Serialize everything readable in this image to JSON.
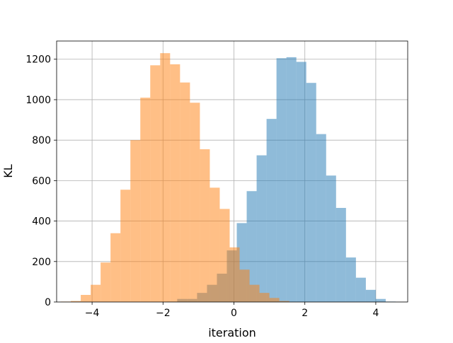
{
  "chart_data": {
    "type": "histogram",
    "xlabel": "iteration",
    "ylabel": "KL",
    "xlim": [
      -5.0,
      4.9
    ],
    "ylim": [
      0,
      1290
    ],
    "x_ticks": [
      -4,
      -2,
      0,
      2,
      4
    ],
    "y_ticks": [
      0,
      200,
      400,
      600,
      800,
      1000,
      1200
    ],
    "grid": true,
    "series": [
      {
        "color": "#1f77b4",
        "opacity": 0.5,
        "bins": [
          [
            -1.88,
            -1.6,
            2
          ],
          [
            -1.6,
            -1.32,
            15
          ],
          [
            -1.32,
            -1.04,
            15
          ],
          [
            -1.04,
            -0.76,
            45
          ],
          [
            -0.76,
            -0.48,
            85
          ],
          [
            -0.48,
            -0.2,
            140
          ],
          [
            -0.2,
            0.08,
            255
          ],
          [
            0.08,
            0.36,
            390
          ],
          [
            0.36,
            0.64,
            548
          ],
          [
            0.64,
            0.92,
            725
          ],
          [
            0.92,
            1.2,
            905
          ],
          [
            1.2,
            1.48,
            1205
          ],
          [
            1.48,
            1.76,
            1210
          ],
          [
            1.76,
            2.04,
            1187
          ],
          [
            2.04,
            2.32,
            1083
          ],
          [
            2.32,
            2.6,
            830
          ],
          [
            2.6,
            2.88,
            625
          ],
          [
            2.88,
            3.16,
            465
          ],
          [
            3.16,
            3.44,
            220
          ],
          [
            3.44,
            3.72,
            120
          ],
          [
            3.72,
            4.0,
            60
          ],
          [
            4.0,
            4.28,
            15
          ],
          [
            4.28,
            4.56,
            2
          ]
        ]
      },
      {
        "color": "#ff7f0e",
        "opacity": 0.5,
        "bins": [
          [
            -4.88,
            -4.6,
            2
          ],
          [
            -4.6,
            -4.32,
            5
          ],
          [
            -4.32,
            -4.04,
            35
          ],
          [
            -4.04,
            -3.76,
            85
          ],
          [
            -3.76,
            -3.48,
            195
          ],
          [
            -3.48,
            -3.2,
            340
          ],
          [
            -3.2,
            -2.92,
            555
          ],
          [
            -2.92,
            -2.64,
            800
          ],
          [
            -2.64,
            -2.36,
            1010
          ],
          [
            -2.36,
            -2.08,
            1170
          ],
          [
            -2.08,
            -1.8,
            1230
          ],
          [
            -1.8,
            -1.52,
            1175
          ],
          [
            -1.52,
            -1.24,
            1085
          ],
          [
            -1.24,
            -0.96,
            985
          ],
          [
            -0.96,
            -0.68,
            755
          ],
          [
            -0.68,
            -0.4,
            565
          ],
          [
            -0.4,
            -0.12,
            460
          ],
          [
            -0.12,
            0.16,
            270
          ],
          [
            0.16,
            0.44,
            160
          ],
          [
            0.44,
            0.72,
            85
          ],
          [
            0.72,
            1.0,
            45
          ],
          [
            1.0,
            1.28,
            20
          ],
          [
            1.28,
            1.56,
            5
          ]
        ]
      }
    ]
  }
}
